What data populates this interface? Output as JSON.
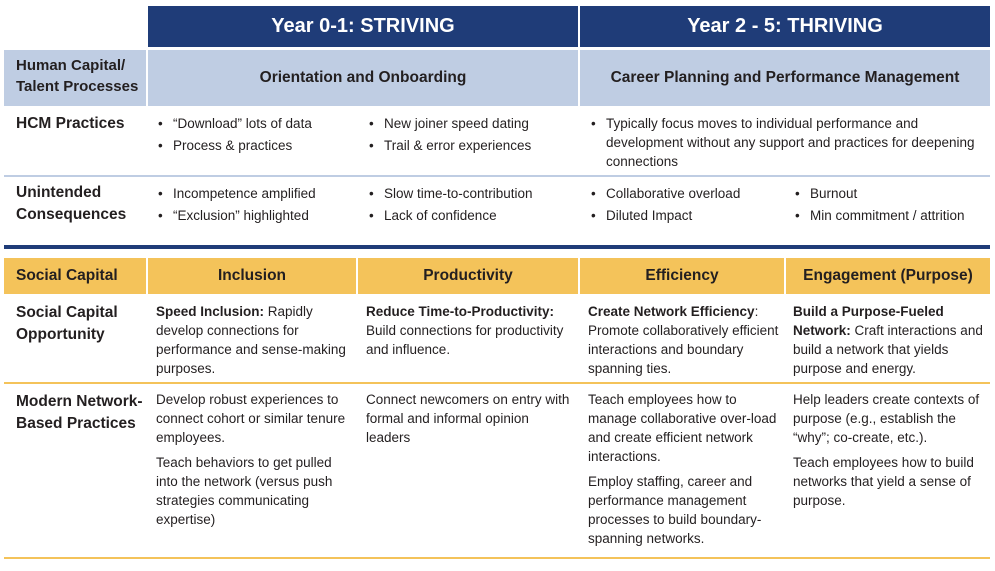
{
  "header": {
    "striving": "Year 0-1: STRIVING",
    "thriving": "Year 2 - 5: THRIVING"
  },
  "human_capital": {
    "label": "Human Capital/ Talent Processes",
    "orientation": "Orientation and Onboarding",
    "career": "Career Planning and Performance Management"
  },
  "hcm": {
    "label": "HCM Practices",
    "col1": [
      "“Download” lots of data",
      "Process & practices"
    ],
    "col2": [
      "New joiner speed dating",
      "Trail & error experiences"
    ],
    "col3": [
      "Typically focus moves to individual performance and development without any support and practices for deepening connections"
    ]
  },
  "unintended": {
    "label": "Unintended Consequences",
    "col1": [
      "Incompetence amplified",
      "“Exclusion” highlighted"
    ],
    "col2": [
      "Slow time-to-contribution",
      "Lack of confidence"
    ],
    "col3": [
      "Collaborative overload",
      "Diluted Impact"
    ],
    "col4": [
      "Burnout",
      "Min commitment / attrition"
    ]
  },
  "social_capital": {
    "label": "Social Capital",
    "inclusion": "Inclusion",
    "productivity": "Productivity",
    "efficiency": "Efficiency",
    "engagement": "Engagement (Purpose)"
  },
  "opportunity": {
    "label": "Social Capital Opportunity",
    "c1_bold": "Speed Inclusion:",
    "c1_text": " Rapidly develop connections for performance and sense-making purposes.",
    "c2_bold": "Reduce Time-to-Productivity:",
    "c2_text": " Build connections for productivity and influence.",
    "c3_bold": "Create Network Efficiency",
    "c3_text": ": Promote collaboratively efficient interactions and boundary spanning ties.",
    "c4_bold": "Build a Purpose-Fueled Network:",
    "c4_text": " Craft interactions and build a network that yields purpose and energy."
  },
  "modern": {
    "label": "Modern Network-Based Practices",
    "c1_p1": "Develop robust experiences to connect cohort or similar tenure employees.",
    "c1_p2": "Teach behaviors to get pulled into the network (versus push strategies communicating expertise)",
    "c2_p1": "Connect newcomers on entry with formal and informal opinion leaders",
    "c3_p1": "Teach employees how to manage collaborative over-load and create efficient network interactions.",
    "c3_p2": "Employ staffing, career and performance management processes to build boundary-spanning networks.",
    "c4_p1": "Help leaders create contexts of purpose (e.g., establish the “why”; co-create, etc.).",
    "c4_p2": "Teach employees how to build networks that yield a sense of purpose."
  },
  "colors": {
    "navy": "#1f3c78",
    "light_blue": "#bfcde3",
    "gold": "#f4c35a"
  }
}
